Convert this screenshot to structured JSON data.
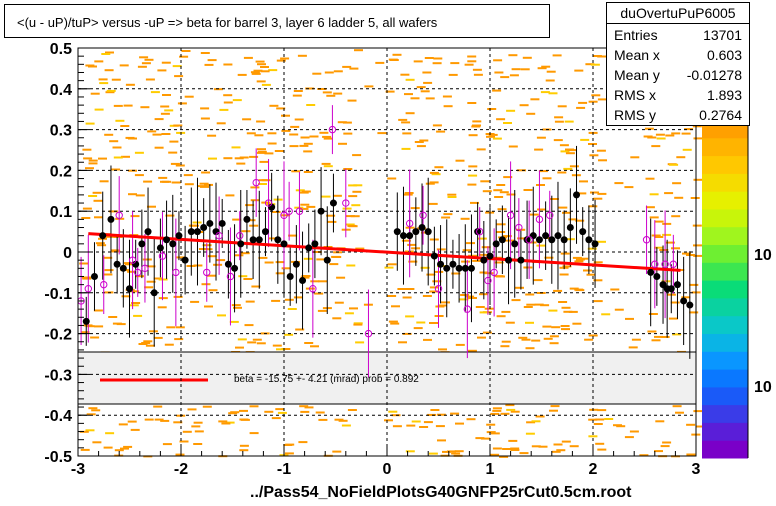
{
  "title": "<(u - uP)/tuP> versus  -uP => beta for barrel 3, layer 6 ladder 5, all wafers",
  "stats": {
    "name": "duOvertuPuP6005",
    "rows": [
      {
        "key": "Entries",
        "value": "13701"
      },
      {
        "key": "Mean x",
        "value": "0.603"
      },
      {
        "key": "Mean y",
        "value": "-0.01278"
      },
      {
        "key": "RMS x",
        "value": "1.893"
      },
      {
        "key": "RMS y",
        "value": "0.2764"
      }
    ]
  },
  "xlabel": "../Pass54_NoFieldPlotsG40GNFP25rCut0.5cm.root",
  "fit_legend": "beta =  -15.75 +-  4.21 (mrad) prob = 0.892",
  "colors": {
    "fit_line": "#ff0000",
    "profile_black": "#000000",
    "profile_open": "#cc00cc",
    "hist": "#ffa500"
  },
  "chart_data": {
    "type": "scatter",
    "xlim": [
      -3,
      3
    ],
    "ylim": [
      -0.5,
      0.5
    ],
    "x_ticks": [
      "-3",
      "-2",
      "-1",
      "0",
      "1",
      "2",
      "3"
    ],
    "y_ticks": [
      "0.5",
      "0.4",
      "0.3",
      "0.2",
      "0.1",
      "0",
      "-0.1",
      "-0.2",
      "-0.3",
      "-0.4",
      "-0.5"
    ],
    "z_tick_labels": [
      "10",
      "10"
    ],
    "grid": true,
    "fit_line": {
      "x": [
        -2.9,
        2.85
      ],
      "y": [
        0.045,
        -0.045
      ]
    },
    "series": [
      {
        "marker": "filled-circle",
        "x": [
          -2.92,
          -2.84,
          -2.76,
          -2.68,
          -2.62,
          -2.56,
          -2.5,
          -2.44,
          -2.38,
          -2.32,
          -2.26,
          -2.2,
          -2.14,
          -2.08,
          -2.02,
          -1.96,
          -1.9,
          -1.84,
          -1.78,
          -1.72,
          -1.66,
          -1.6,
          -1.54,
          -1.48,
          -1.42,
          -1.36,
          -1.3,
          -1.24,
          -1.18,
          -1.12,
          -1.06,
          -1.0,
          -0.94,
          -0.88,
          -0.82,
          -0.76,
          -0.7,
          -0.64,
          -0.58,
          -0.52,
          0.1,
          0.16,
          0.22,
          0.28,
          0.34,
          0.4,
          0.46,
          0.52,
          0.58,
          0.64,
          0.7,
          0.76,
          0.82,
          0.88,
          0.94,
          1.0,
          1.06,
          1.12,
          1.18,
          1.24,
          1.3,
          1.36,
          1.42,
          1.48,
          1.54,
          1.6,
          1.66,
          1.72,
          1.78,
          1.84,
          1.9,
          1.96,
          2.02,
          2.56,
          2.62,
          2.68,
          2.72,
          2.76,
          2.82,
          2.88,
          2.94
        ],
        "y": [
          -0.17,
          -0.06,
          0.04,
          0.08,
          -0.03,
          -0.04,
          -0.09,
          -0.03,
          0.02,
          0.05,
          -0.1,
          0.01,
          0.03,
          0.02,
          0.04,
          -0.02,
          0.05,
          0.05,
          0.06,
          0.07,
          0.05,
          0.07,
          -0.03,
          -0.04,
          0.02,
          0.08,
          0.03,
          0.03,
          0.05,
          0.11,
          0.03,
          0.02,
          -0.06,
          -0.03,
          -0.07,
          0.01,
          0.02,
          0.1,
          -0.02,
          0.12,
          0.05,
          0.04,
          0.04,
          0.05,
          0.06,
          0.05,
          -0.01,
          -0.03,
          -0.04,
          -0.03,
          -0.04,
          -0.04,
          -0.04,
          0.05,
          -0.02,
          -0.01,
          0.02,
          0.03,
          -0.02,
          0.02,
          -0.02,
          0.03,
          0.04,
          0.03,
          0.04,
          0.03,
          0.04,
          0.03,
          0.06,
          0.14,
          0.05,
          0.03,
          0.02,
          -0.05,
          -0.06,
          -0.08,
          -0.09,
          -0.09,
          -0.08,
          -0.12,
          -0.13
        ]
      },
      {
        "marker": "open-circle",
        "x": [
          -2.97,
          -2.9,
          -2.75,
          -2.6,
          -2.47,
          -2.42,
          -2.35,
          -2.18,
          -2.05,
          -1.75,
          -1.63,
          -1.52,
          -1.43,
          -1.27,
          -1.15,
          -1.0,
          -0.95,
          -0.85,
          -0.72,
          -0.53,
          -0.4,
          -0.18,
          0.22,
          0.35,
          0.5,
          0.78,
          0.9,
          0.98,
          1.04,
          1.2,
          1.28,
          1.38,
          1.48,
          1.58,
          2.52,
          2.6,
          2.7,
          2.78
        ],
        "y": [
          -0.12,
          -0.09,
          -0.08,
          0.09,
          -0.02,
          -0.05,
          -0.04,
          -0.01,
          -0.05,
          -0.05,
          0.04,
          -0.06,
          0.04,
          0.17,
          0.12,
          0.09,
          0.1,
          0.1,
          -0.09,
          0.3,
          0.12,
          -0.2,
          0.07,
          0.09,
          -0.09,
          -0.14,
          0.05,
          -0.07,
          -0.05,
          0.09,
          0.06,
          0.03,
          0.08,
          0.09,
          0.03,
          -0.03,
          -0.03,
          -0.03
        ]
      }
    ]
  }
}
